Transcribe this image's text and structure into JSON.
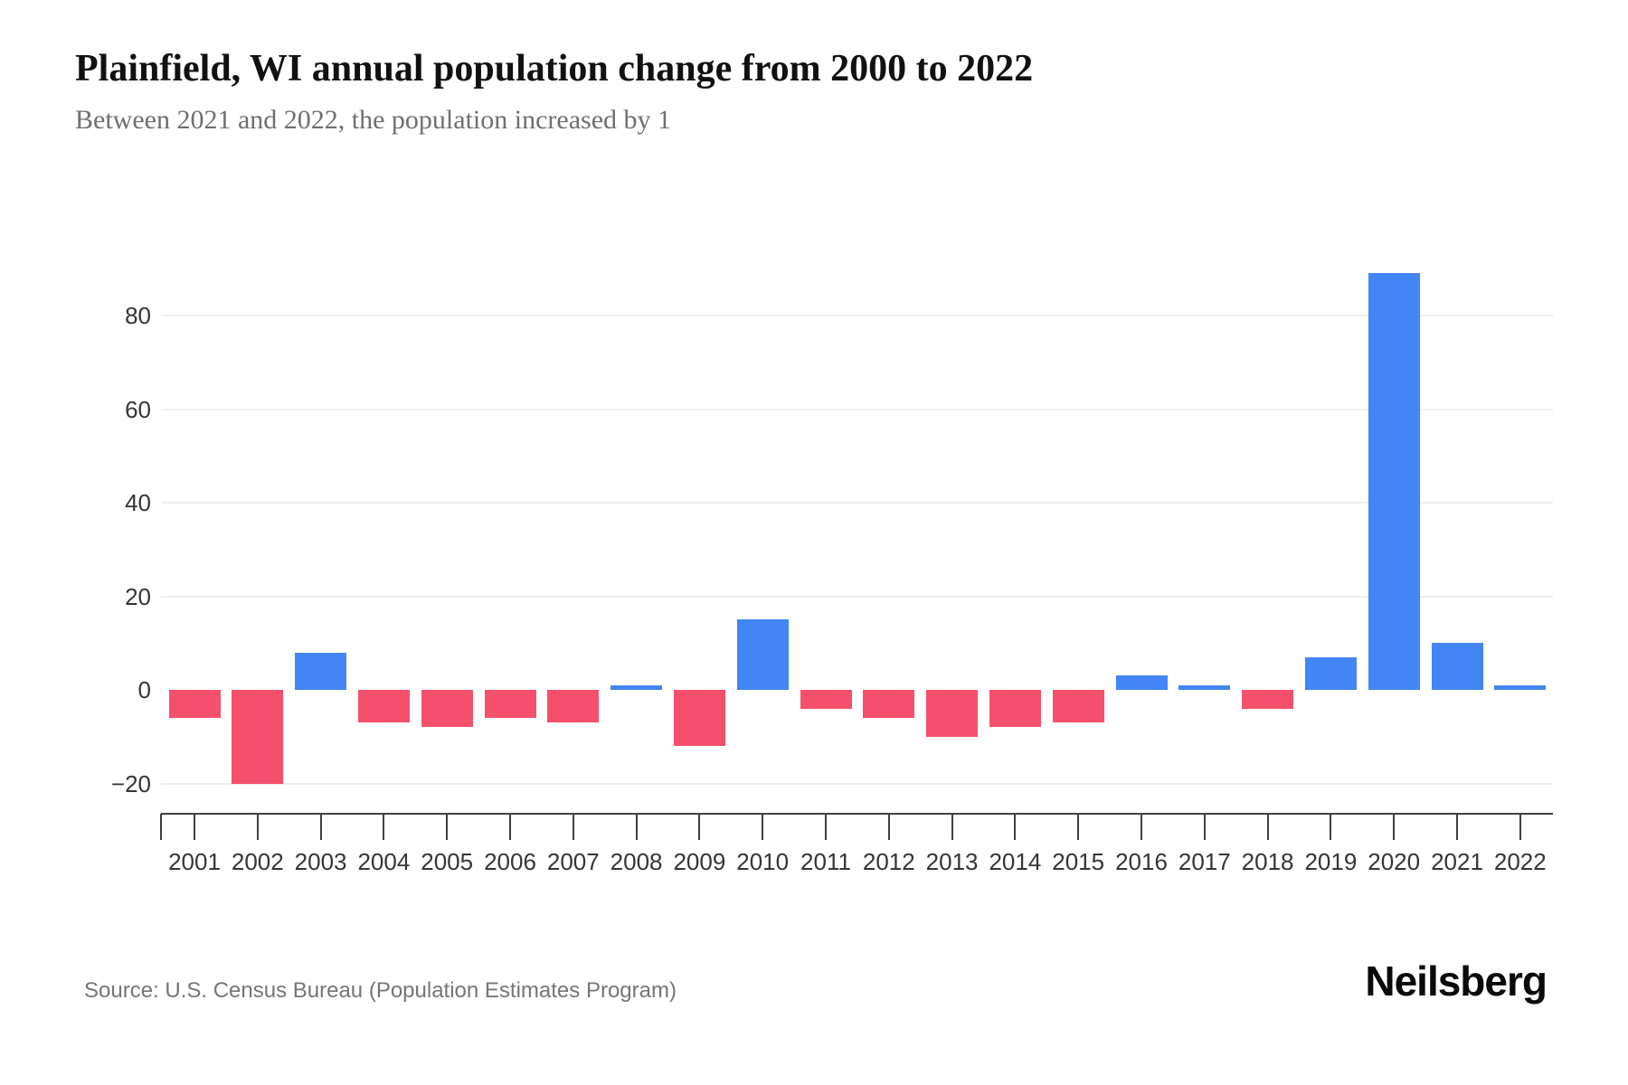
{
  "page": {
    "title": "Plainfield, WI annual population change from 2000 to 2022",
    "subtitle": "Between 2021 and 2022, the population increased by 1",
    "source": "Source: U.S. Census Bureau (Population Estimates Program)",
    "brand": "Neilsberg"
  },
  "colors": {
    "positive_bar": "#4285F4",
    "negative_bar": "#F4506C",
    "gridline": "#EEEEEE",
    "axis": "#404040",
    "tick_label": "#333538",
    "subtitle_text": "#6F6F6F",
    "source_text": "#757575"
  },
  "chart_data": {
    "type": "bar",
    "title": "Plainfield, WI annual population change from 2000 to 2022",
    "subtitle": "Between 2021 and 2022, the population increased by 1",
    "xlabel": "",
    "ylabel": "",
    "categories": [
      "2001",
      "2002",
      "2003",
      "2004",
      "2005",
      "2006",
      "2007",
      "2008",
      "2009",
      "2010",
      "2011",
      "2012",
      "2013",
      "2014",
      "2015",
      "2016",
      "2017",
      "2018",
      "2019",
      "2020",
      "2021",
      "2022"
    ],
    "values": [
      -6,
      -20,
      8,
      -7,
      -8,
      -6,
      -7,
      1,
      -12,
      15,
      -4,
      -6,
      -10,
      -8,
      -7,
      3,
      1,
      -4,
      7,
      89,
      10,
      1
    ],
    "yticks": [
      80,
      60,
      40,
      20,
      0,
      -20
    ],
    "ylim": [
      -26.5,
      97
    ],
    "grid": true,
    "legend": false,
    "positive_color": "#4285F4",
    "negative_color": "#F4506C"
  }
}
